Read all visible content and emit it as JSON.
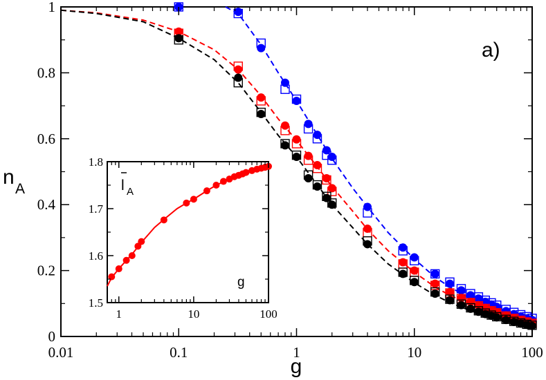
{
  "chart_data": [
    {
      "type": "scatter",
      "panel_label": "a)",
      "xlabel": "g",
      "ylabel": "n",
      "ylabel_sub": "A",
      "xscale": "log",
      "xlim": [
        0.01,
        100
      ],
      "ylim": [
        0,
        1
      ],
      "x_ticks": [
        0.01,
        0.1,
        1,
        10,
        100
      ],
      "x_tick_labels": [
        "0.01",
        "0.1",
        "1",
        "10",
        "100"
      ],
      "y_ticks": [
        0,
        0.2,
        0.4,
        0.6,
        0.8,
        1
      ],
      "y_tick_labels": [
        "0",
        "0.2",
        "0.4",
        "0.6",
        "0.8",
        "1"
      ],
      "grid": false,
      "series": [
        {
          "color": "#0000ff",
          "marker": "filled-circle",
          "x": [
            0.1,
            0.32,
            0.5,
            0.8,
            1,
            1.26,
            1.5,
            1.8,
            2,
            4,
            8,
            10,
            15,
            20,
            25,
            30,
            35,
            40,
            45,
            50,
            60,
            70,
            80,
            90,
            100
          ],
          "y": [
            1.0,
            0.985,
            0.875,
            0.77,
            0.715,
            0.645,
            0.612,
            0.565,
            0.545,
            0.393,
            0.27,
            0.24,
            0.19,
            0.16,
            0.14,
            0.125,
            0.115,
            0.105,
            0.097,
            0.09,
            0.077,
            0.068,
            0.061,
            0.055,
            0.05
          ]
        },
        {
          "color": "#0000ff",
          "marker": "open-square",
          "x": [
            0.1,
            0.32,
            0.5,
            0.8,
            1,
            1.26,
            1.5,
            1.8,
            2,
            4,
            8,
            10,
            15,
            20,
            25,
            30,
            35,
            40,
            45,
            50,
            60,
            70,
            80,
            90,
            100
          ],
          "y": [
            1.0,
            0.98,
            0.89,
            0.75,
            0.72,
            0.63,
            0.6,
            0.55,
            0.535,
            0.375,
            0.26,
            0.23,
            0.19,
            0.165,
            0.145,
            0.13,
            0.12,
            0.11,
            0.102,
            0.095,
            0.082,
            0.073,
            0.066,
            0.06,
            0.055
          ]
        },
        {
          "color": "#ff0000",
          "marker": "filled-circle",
          "x": [
            0.1,
            0.32,
            0.5,
            0.8,
            1,
            1.26,
            1.5,
            1.8,
            2,
            4,
            8,
            10,
            15,
            20,
            25,
            30,
            35,
            40,
            45,
            50,
            60,
            70,
            80,
            90,
            100
          ],
          "y": [
            0.925,
            0.81,
            0.725,
            0.64,
            0.598,
            0.548,
            0.52,
            0.48,
            0.45,
            0.327,
            0.225,
            0.2,
            0.16,
            0.135,
            0.117,
            0.105,
            0.095,
            0.087,
            0.08,
            0.074,
            0.064,
            0.056,
            0.05,
            0.045,
            0.041
          ]
        },
        {
          "color": "#ff0000",
          "marker": "open-square",
          "x": [
            0.1,
            0.32,
            0.5,
            0.8,
            1,
            1.26,
            1.5,
            1.8,
            2,
            4,
            8,
            10,
            15,
            20,
            25,
            30,
            35,
            40,
            45,
            50,
            60,
            70,
            80,
            90,
            100
          ],
          "y": [
            0.92,
            0.82,
            0.715,
            0.625,
            0.585,
            0.535,
            0.51,
            0.475,
            0.44,
            0.315,
            0.22,
            0.195,
            0.155,
            0.132,
            0.115,
            0.103,
            0.093,
            0.085,
            0.078,
            0.072,
            0.062,
            0.055,
            0.049,
            0.044,
            0.04
          ]
        },
        {
          "color": "#000000",
          "marker": "filled-circle",
          "x": [
            0.1,
            0.32,
            0.5,
            0.8,
            1,
            1.26,
            1.5,
            1.8,
            2,
            4,
            8,
            10,
            15,
            20,
            25,
            30,
            35,
            40,
            45,
            50,
            60,
            70,
            80,
            90,
            100
          ],
          "y": [
            0.905,
            0.785,
            0.675,
            0.58,
            0.545,
            0.48,
            0.455,
            0.42,
            0.4,
            0.28,
            0.19,
            0.165,
            0.13,
            0.11,
            0.095,
            0.084,
            0.075,
            0.068,
            0.063,
            0.058,
            0.05,
            0.044,
            0.039,
            0.035,
            0.032
          ]
        },
        {
          "color": "#000000",
          "marker": "open-square",
          "x": [
            0.1,
            0.32,
            0.5,
            0.8,
            1,
            1.26,
            1.5,
            1.8,
            2,
            4,
            8,
            10,
            15,
            20,
            25,
            30,
            35,
            40,
            45,
            50,
            60,
            70,
            80,
            90,
            100
          ],
          "y": [
            0.9,
            0.77,
            0.68,
            0.585,
            0.55,
            0.49,
            0.46,
            0.425,
            0.405,
            0.29,
            0.195,
            0.17,
            0.135,
            0.113,
            0.098,
            0.087,
            0.078,
            0.071,
            0.065,
            0.06,
            0.052,
            0.046,
            0.041,
            0.037,
            0.034
          ]
        }
      ],
      "fit_curves": [
        {
          "color": "#0000ff",
          "style": "dashed",
          "x": [
            0.25,
            0.32,
            0.5,
            0.7,
            1,
            1.5,
            2,
            3,
            4,
            6,
            10,
            15,
            20,
            30,
            50,
            70,
            100
          ],
          "y": [
            1.0,
            0.98,
            0.885,
            0.8,
            0.715,
            0.612,
            0.54,
            0.45,
            0.393,
            0.315,
            0.235,
            0.18,
            0.15,
            0.115,
            0.082,
            0.065,
            0.05
          ]
        },
        {
          "color": "#ff0000",
          "style": "dashed",
          "x": [
            0.01,
            0.02,
            0.05,
            0.1,
            0.2,
            0.32,
            0.5,
            0.7,
            1,
            1.5,
            2,
            3,
            4,
            6,
            10,
            15,
            20,
            30,
            50,
            70,
            100
          ],
          "y": [
            0.99,
            0.982,
            0.96,
            0.925,
            0.87,
            0.81,
            0.73,
            0.66,
            0.595,
            0.515,
            0.455,
            0.38,
            0.325,
            0.26,
            0.195,
            0.15,
            0.125,
            0.097,
            0.068,
            0.053,
            0.041
          ]
        },
        {
          "color": "#000000",
          "style": "dashed",
          "x": [
            0.01,
            0.02,
            0.05,
            0.1,
            0.2,
            0.32,
            0.5,
            0.7,
            1,
            1.5,
            2,
            3,
            4,
            6,
            10,
            15,
            20,
            30,
            50,
            70,
            100
          ],
          "y": [
            0.99,
            0.98,
            0.955,
            0.905,
            0.84,
            0.77,
            0.68,
            0.61,
            0.545,
            0.46,
            0.4,
            0.33,
            0.28,
            0.22,
            0.163,
            0.125,
            0.103,
            0.078,
            0.055,
            0.043,
            0.032
          ]
        }
      ]
    },
    {
      "type": "scatter",
      "inset": true,
      "xlabel": "g",
      "ylabel": "l",
      "ylabel_sub": "A",
      "ylabel_overbar": true,
      "xscale": "log",
      "xlim": [
        0.7,
        100
      ],
      "ylim": [
        1.5,
        1.8
      ],
      "x_ticks": [
        1,
        10,
        100
      ],
      "x_tick_labels": [
        "1",
        "10",
        "100"
      ],
      "y_ticks": [
        1.5,
        1.6,
        1.7,
        1.8
      ],
      "y_tick_labels": [
        "1.5",
        "1.6",
        "1.7",
        "1.8"
      ],
      "series": [
        {
          "color": "#ff0000",
          "marker": "filled-circle",
          "x": [
            0.8,
            1.0,
            1.26,
            1.5,
            1.8,
            2.0,
            4,
            8,
            10,
            15,
            20,
            25,
            30,
            35,
            40,
            45,
            50,
            60,
            70,
            80,
            90,
            100
          ],
          "y": [
            1.555,
            1.572,
            1.59,
            1.6,
            1.62,
            1.63,
            1.676,
            1.712,
            1.72,
            1.738,
            1.75,
            1.758,
            1.763,
            1.768,
            1.771,
            1.774,
            1.777,
            1.781,
            1.784,
            1.786,
            1.788,
            1.79
          ]
        }
      ],
      "fit_curves": [
        {
          "color": "#ff0000",
          "style": "solid",
          "x": [
            0.7,
            0.8,
            1.0,
            1.26,
            1.5,
            2.0,
            3,
            4,
            6,
            8,
            10,
            15,
            20,
            30,
            50,
            70,
            100
          ],
          "y": [
            1.535,
            1.553,
            1.572,
            1.59,
            1.603,
            1.628,
            1.66,
            1.677,
            1.7,
            1.712,
            1.72,
            1.738,
            1.75,
            1.763,
            1.777,
            1.784,
            1.79
          ]
        }
      ]
    }
  ]
}
